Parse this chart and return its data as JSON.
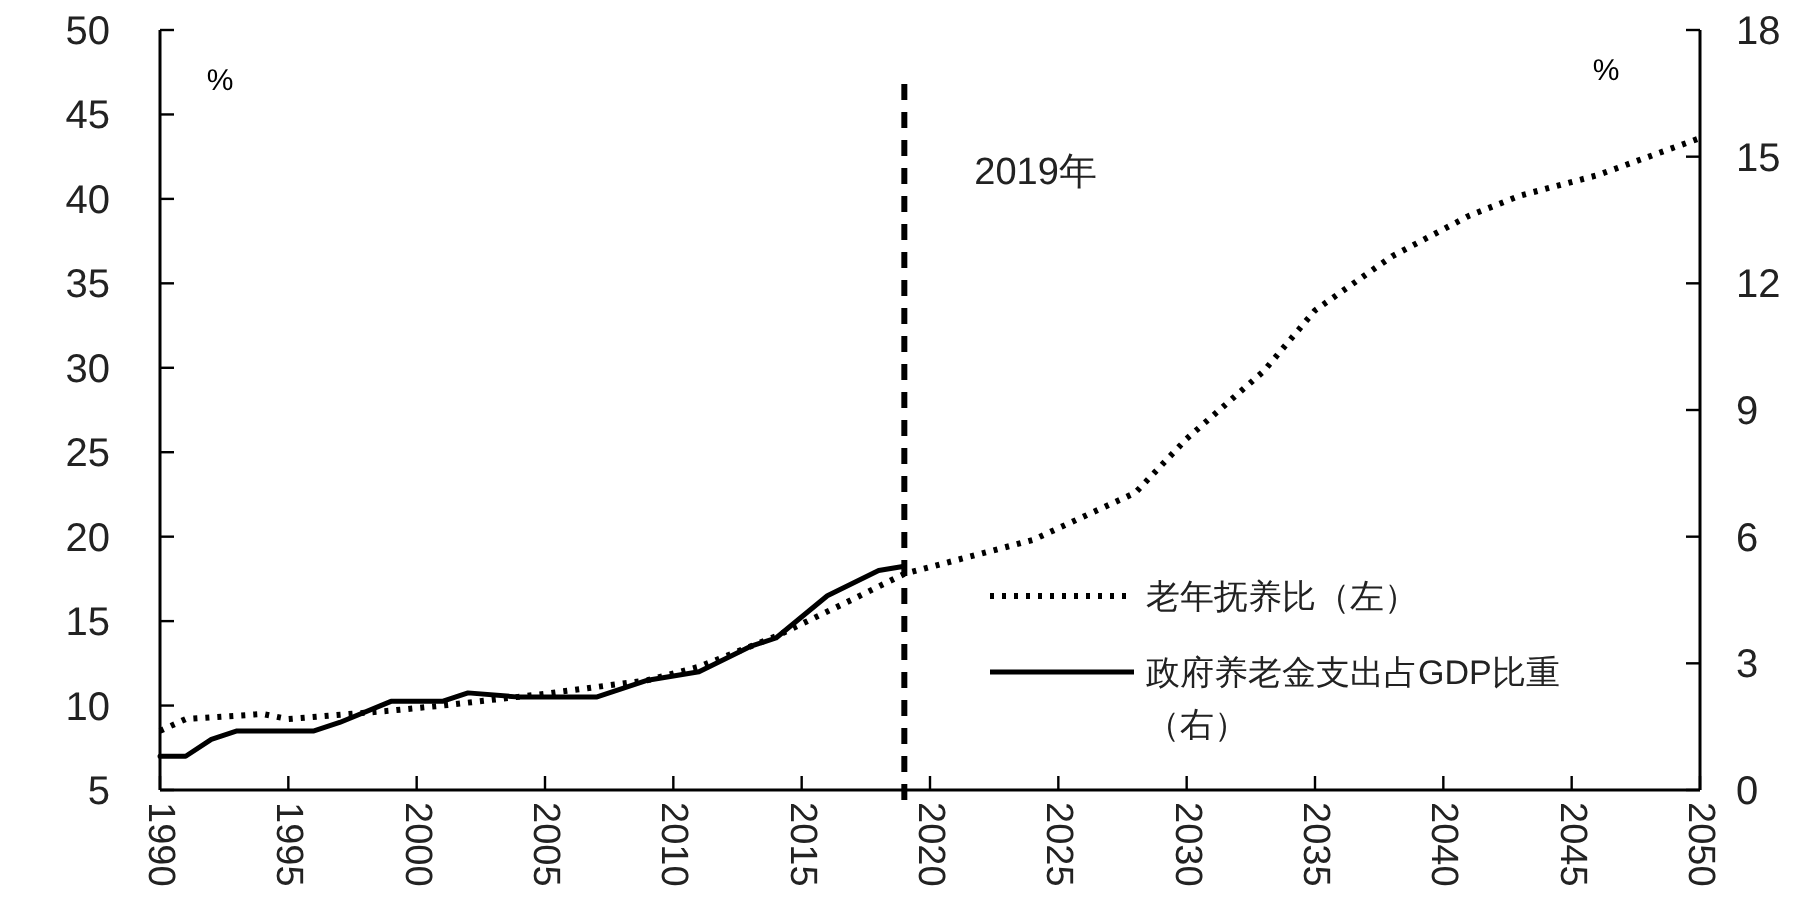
{
  "chart_data": {
    "type": "line",
    "ylabel": "%",
    "y2label": "%",
    "xlim": [
      1990,
      2050
    ],
    "xticks": [
      1990,
      1995,
      2000,
      2005,
      2010,
      2015,
      2020,
      2025,
      2030,
      2035,
      2040,
      2045,
      2050
    ],
    "ylim": [
      5,
      50
    ],
    "yticks": [
      5,
      10,
      15,
      20,
      25,
      30,
      35,
      40,
      45,
      50
    ],
    "y2lim": [
      0,
      18
    ],
    "y2ticks": [
      0,
      3,
      6,
      9,
      12,
      15,
      18
    ],
    "series": [
      {
        "name": "老年抚养比（左）",
        "color": "#000000",
        "line_style": "dotted",
        "x": [
          1990,
          1991,
          1994,
          1995,
          1999,
          2001,
          2005,
          2009,
          2011,
          2014,
          2017,
          2019,
          2024,
          2028,
          2030,
          2033,
          2035,
          2038,
          2041,
          2043,
          2046,
          2050
        ],
        "values": [
          8.5,
          9.2,
          9.5,
          9.2,
          9.7,
          10.0,
          10.7,
          11.5,
          12.3,
          14.1,
          16.3,
          17.8,
          19.8,
          22.6,
          25.8,
          29.8,
          33.4,
          36.6,
          39.0,
          40.2,
          41.4,
          43.6
        ]
      },
      {
        "name": "政府养老金支出占GDP比重（右）",
        "color": "#000000",
        "line_style": "solid",
        "axis": "y2",
        "x": [
          1990,
          1991,
          1992,
          1993,
          1996,
          1997,
          1999,
          2001,
          2002,
          2004,
          2007,
          2009,
          2011,
          2013,
          2014,
          2016,
          2018,
          2019
        ],
        "values": [
          0.8,
          0.8,
          1.2,
          1.4,
          1.4,
          1.6,
          2.1,
          2.1,
          2.3,
          2.2,
          2.2,
          2.6,
          2.8,
          3.4,
          3.6,
          4.6,
          5.2,
          5.3
        ]
      }
    ],
    "ref_lines": [
      {
        "axis": "x",
        "value": 2019,
        "label": "2019年",
        "color": "#000000",
        "line_style": "dashed"
      }
    ],
    "legend": "bottom right",
    "grid": false
  }
}
